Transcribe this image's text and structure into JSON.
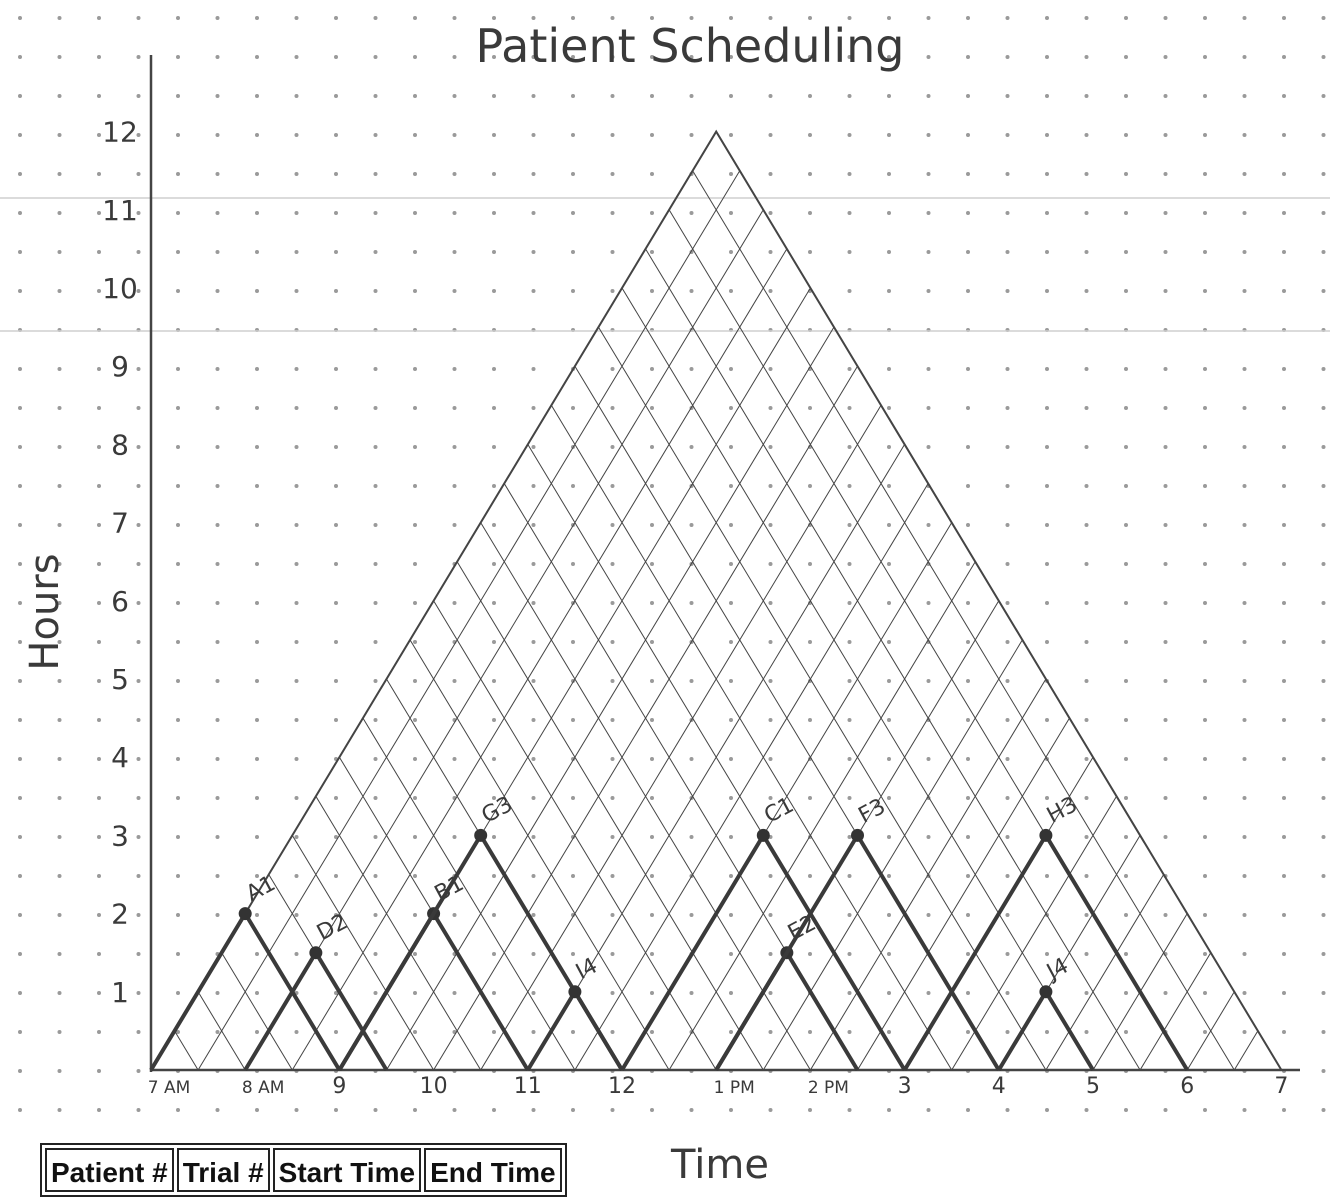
{
  "title": "Patient Scheduling",
  "xlabel": "Time",
  "ylabel": "Hours",
  "colors": {
    "grid_dot": "#9a9a9a",
    "line": "#444444",
    "heavy": "#3a3a3a",
    "rule": "#cfcfcf"
  },
  "table": {
    "headers": [
      "Patient #",
      "Trial #",
      "Start Time",
      "End Time"
    ]
  },
  "chart_data": {
    "type": "line",
    "title": "Patient Scheduling",
    "xlabel": "Time",
    "ylabel": "Hours",
    "ylim": [
      0,
      12
    ],
    "xlim": [
      0,
      12
    ],
    "ytick_labels": [
      "1",
      "2",
      "3",
      "4",
      "5",
      "6",
      "7",
      "8",
      "9",
      "10",
      "11",
      "12"
    ],
    "xtick_labels": [
      "7 AM",
      "8 AM",
      "9",
      "10",
      "11",
      "12",
      "1 PM",
      "2 PM",
      "3",
      "4",
      "5",
      "6",
      "7"
    ],
    "xtick_values": [
      0,
      1,
      2,
      3,
      4,
      5,
      6,
      7,
      8,
      9,
      10,
      11,
      12
    ],
    "envelope": {
      "x": [
        0,
        6,
        12
      ],
      "y": [
        0,
        12,
        0
      ]
    },
    "peaks": [
      {
        "label": "A1",
        "x": 1.0,
        "y": 2
      },
      {
        "label": "D2",
        "x": 1.75,
        "y": 1.5
      },
      {
        "label": "B1",
        "x": 3.0,
        "y": 2
      },
      {
        "label": "G3",
        "x": 3.5,
        "y": 3
      },
      {
        "label": "I4",
        "x": 4.5,
        "y": 1
      },
      {
        "label": "C1",
        "x": 6.5,
        "y": 3
      },
      {
        "label": "E2",
        "x": 6.75,
        "y": 1.5
      },
      {
        "label": "F3",
        "x": 7.5,
        "y": 3
      },
      {
        "label": "H3",
        "x": 9.5,
        "y": 3
      },
      {
        "label": "J4",
        "x": 9.5,
        "y": 1
      }
    ],
    "grid": true
  }
}
